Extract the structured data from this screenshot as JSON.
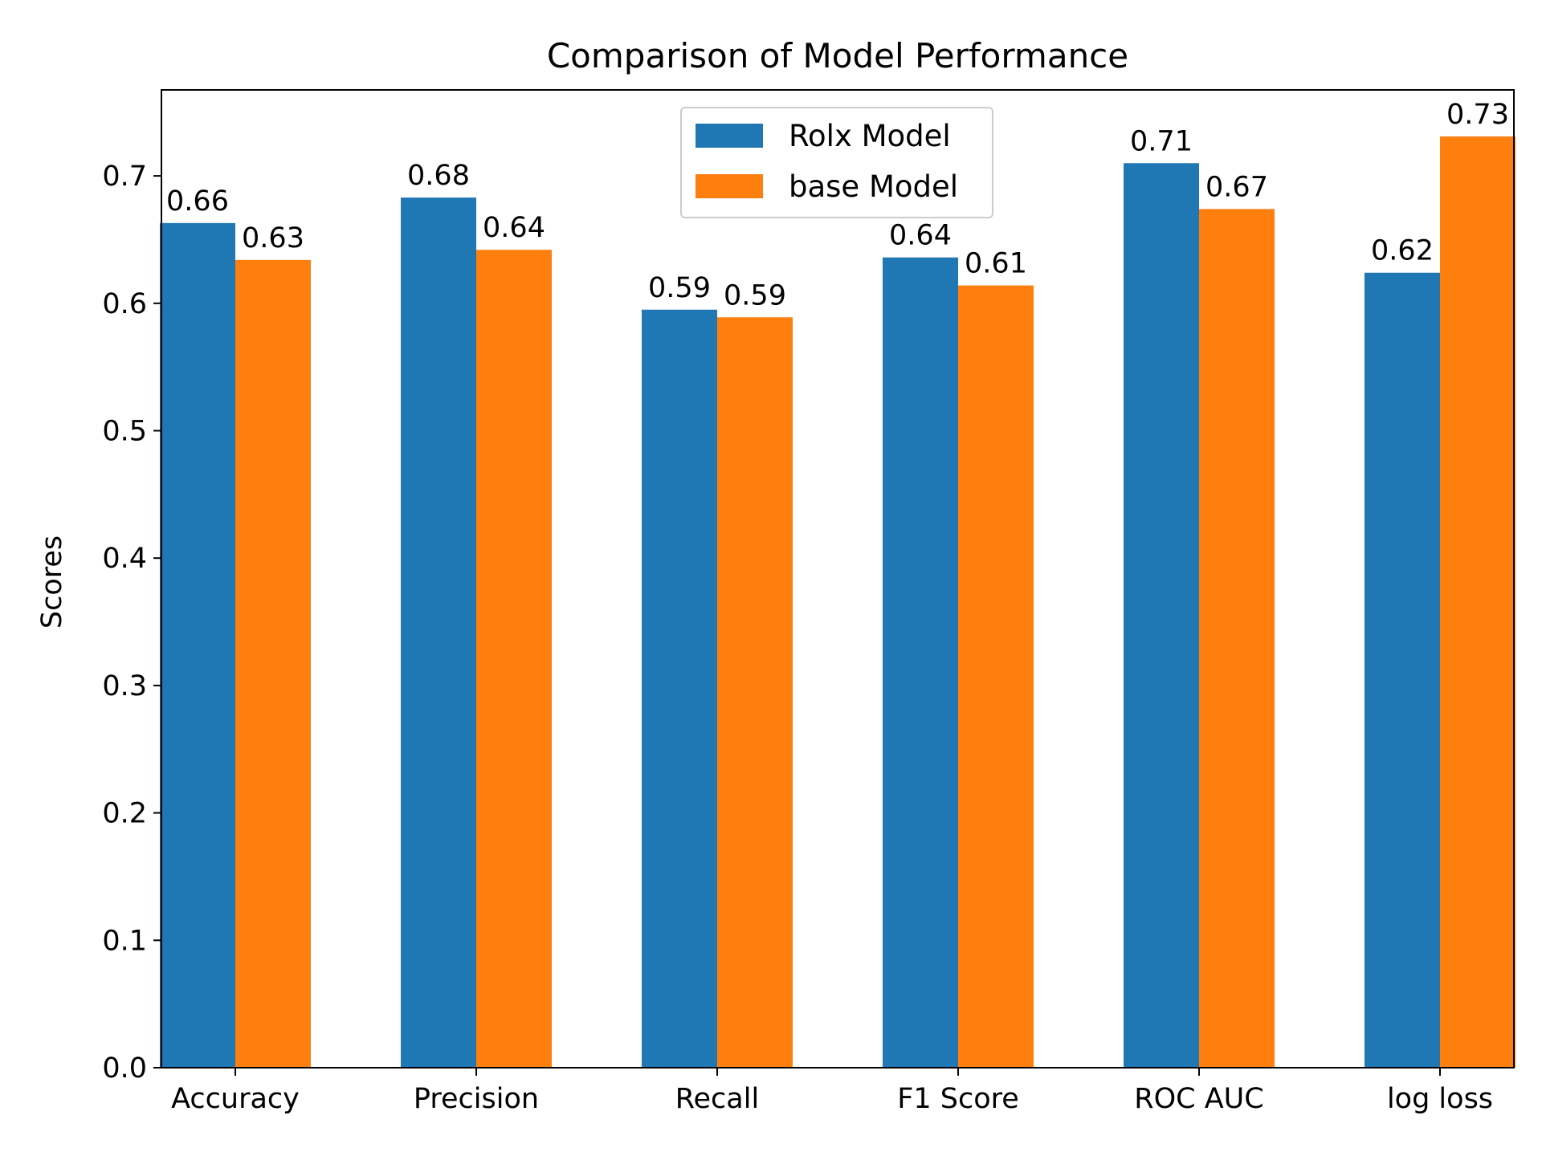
{
  "chart_data": {
    "type": "bar",
    "title": "Comparison of Model Performance",
    "xlabel": "",
    "ylabel": "Scores",
    "categories": [
      "Accuracy",
      "Precision",
      "Recall",
      "F1 Score",
      "ROC AUC",
      "log loss"
    ],
    "series": [
      {
        "name": "Rolx Model",
        "color": "#1f77b4",
        "values": [
          0.663,
          0.683,
          0.595,
          0.636,
          0.71,
          0.624
        ],
        "labels": [
          "0.66",
          "0.68",
          "0.59",
          "0.64",
          "0.71",
          "0.62"
        ]
      },
      {
        "name": "base Model",
        "color": "#ff7f0e",
        "values": [
          0.634,
          0.642,
          0.589,
          0.614,
          0.674,
          0.731
        ],
        "labels": [
          "0.63",
          "0.64",
          "0.59",
          "0.61",
          "0.67",
          "0.73"
        ]
      }
    ],
    "yticks": [
      "0.0",
      "0.1",
      "0.2",
      "0.3",
      "0.4",
      "0.5",
      "0.6",
      "0.7"
    ],
    "ylim": [
      0,
      0.7675
    ],
    "grid": false,
    "legend_position": "top-center"
  }
}
